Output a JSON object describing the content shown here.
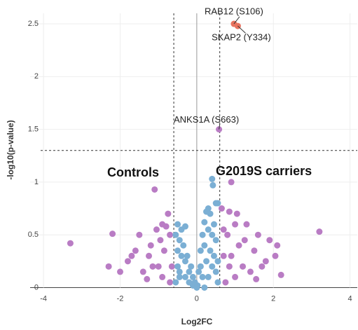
{
  "chart_data": {
    "type": "scatter",
    "x_label": "Log2FC",
    "y_label": "-log10(p-value)",
    "xlim": [
      -4.35,
      4.19
    ],
    "ylim": [
      -0.05,
      2.6
    ],
    "xticks": [
      -4,
      -2,
      0,
      2,
      4
    ],
    "yticks": [
      0,
      0.5,
      1,
      1.5,
      2,
      2.5
    ],
    "grid": true,
    "threshold_x": [
      -0.6,
      0.6
    ],
    "threshold_y": 1.3,
    "series": [
      {
        "color": "#b97cc4",
        "x": [
          -3.3,
          -2.2,
          -2.3,
          -1.1,
          -1.5,
          -1.7,
          -1.2,
          -0.9,
          -0.8,
          -1.0,
          -1.4,
          -0.7,
          -0.85,
          -1.6,
          -1.8,
          -0.9,
          -1.25,
          -0.75,
          -1.05,
          -1.3,
          -0.65,
          -2.0,
          -0.95,
          -1.15,
          -0.7,
          3.2,
          2.1,
          2.05,
          1.8,
          1.6,
          1.5,
          1.3,
          1.0,
          0.85,
          0.65,
          0.8,
          0.9,
          1.1,
          1.2,
          1.4,
          1.7,
          0.7,
          1.0,
          0.75,
          0.9,
          1.25,
          1.9,
          2.2,
          1.55,
          0.7,
          1.05,
          0.85,
          0.58
        ],
        "values": [
          0.42,
          0.51,
          0.2,
          0.93,
          0.5,
          0.3,
          0.4,
          0.6,
          0.58,
          0.2,
          0.15,
          0.5,
          0.35,
          0.35,
          0.25,
          0.1,
          0.3,
          0.7,
          0.55,
          0.08,
          0.2,
          0.15,
          0.45,
          0.2,
          0.05,
          0.53,
          0.4,
          0.3,
          0.25,
          0.5,
          0.35,
          0.6,
          0.6,
          0.72,
          0.75,
          0.5,
          0.3,
          0.4,
          0.2,
          0.15,
          0.2,
          0.3,
          0.1,
          0.05,
          1.0,
          0.45,
          0.45,
          0.12,
          0.08,
          0.55,
          0.7,
          0.2,
          1.5
        ]
      },
      {
        "color": "#7bafd4",
        "x": [
          0.4,
          0.42,
          0.55,
          0.5,
          0.3,
          0.25,
          0.35,
          0.2,
          0.45,
          0.15,
          0.3,
          0.4,
          0.5,
          0.1,
          0.2,
          0.35,
          0.45,
          0.55,
          0.05,
          0.1,
          0.25,
          0.4,
          0.5,
          0.15,
          0.3,
          0.55,
          0.02,
          -0.05,
          -0.1,
          -0.2,
          -0.3,
          -0.4,
          -0.5,
          -0.55,
          -0.45,
          -0.35,
          -0.25,
          -0.15,
          -0.3,
          -0.45,
          -0.55,
          -0.5,
          -0.4,
          -0.3,
          -0.5,
          -0.45,
          -0.2,
          -0.1,
          0.0,
          0.2
        ],
        "values": [
          1.03,
          0.97,
          0.8,
          0.8,
          0.75,
          0.72,
          0.7,
          0.62,
          0.6,
          0.5,
          0.55,
          0.5,
          0.45,
          0.35,
          0.4,
          0.35,
          0.3,
          0.25,
          0.15,
          0.2,
          0.25,
          0.2,
          0.15,
          0.1,
          0.1,
          0.05,
          0.02,
          0.05,
          0.1,
          0.15,
          0.25,
          0.3,
          0.35,
          0.5,
          0.45,
          0.4,
          0.3,
          0.2,
          0.1,
          0.15,
          0.05,
          0.2,
          0.55,
          0.58,
          0.6,
          0.1,
          0.05,
          0.02,
          0.0,
          0.0
        ]
      },
      {
        "color": "#e8735f",
        "x": [
          0.97,
          1.07
        ],
        "values": [
          2.5,
          2.48
        ]
      }
    ],
    "annotations": [
      "RAB12 (S106)",
      "SKAP2 (Y334)",
      "ANKS1A (S663)"
    ],
    "group_labels": [
      "Controls",
      "G2019S carriers"
    ]
  }
}
